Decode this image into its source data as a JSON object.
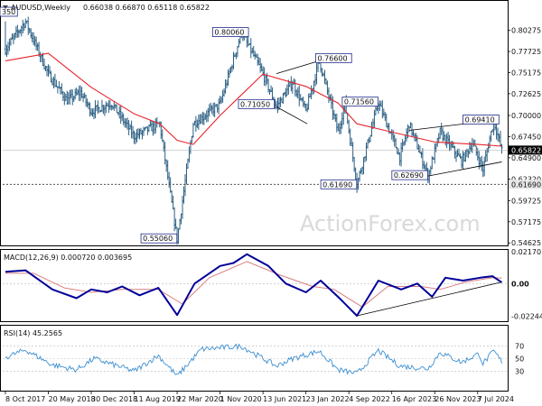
{
  "header": {
    "symbol": "AUDUSD,Weekly",
    "ohlc": "0.66038 0.66870 0.65118 0.65822"
  },
  "watermark": "ActionForex.com",
  "colors": {
    "background": "#ffffff",
    "bar": "#2b5f83",
    "moving_average": "#e8232b",
    "macd": "#000099",
    "signal": "#d98080",
    "rsi": "#3d8fd1",
    "annotation_border": "#1f2a8a",
    "current_price_tag": "#000000",
    "support_tag": "#e6e6e6"
  },
  "chart_data": [
    {
      "type": "line",
      "panel": "price",
      "description_type": "ohlc-bars-with-moving-average",
      "ylim": [
        0.5443,
        0.835
      ],
      "yticks": [
        "0.80275",
        "0.77725",
        "0.75175",
        "0.72625",
        "0.70000",
        "0.67450",
        "0.64900",
        "0.62320",
        "0.59725",
        "0.57175",
        "0.54625"
      ],
      "ytick_values": [
        0.80275,
        0.77725,
        0.75175,
        0.72625,
        0.7,
        0.6745,
        0.649,
        0.6232,
        0.59725,
        0.57175,
        0.54625
      ],
      "xlabels": [
        "8 Oct 2017",
        "20 May 2018",
        "30 Dec 2018",
        "11 Aug 2019",
        "22 Mar 2020",
        "1 Nov 2020",
        "13 Jun 2021",
        "23 Jan 2022",
        "4 Sep 2022",
        "16 Apr 2023",
        "26 Nov 2023",
        "7 Jul 2024"
      ],
      "price_path": [
        {
          "date": "2017-10-08",
          "value": 0.78
        },
        {
          "date": "2018-01-21",
          "value": 0.8135
        },
        {
          "date": "2018-05-20",
          "value": 0.75
        },
        {
          "date": "2018-08-26",
          "value": 0.718
        },
        {
          "date": "2018-11-04",
          "value": 0.728
        },
        {
          "date": "2018-12-30",
          "value": 0.705
        },
        {
          "date": "2019-04-14",
          "value": 0.715
        },
        {
          "date": "2019-08-11",
          "value": 0.675
        },
        {
          "date": "2019-12-22",
          "value": 0.69
        },
        {
          "date": "2020-03-22",
          "value": 0.5506
        },
        {
          "date": "2020-06-14",
          "value": 0.69
        },
        {
          "date": "2020-11-01",
          "value": 0.7135
        },
        {
          "date": "2021-02-21",
          "value": 0.8006
        },
        {
          "date": "2021-06-13",
          "value": 0.75
        },
        {
          "date": "2021-08-22",
          "value": 0.7105
        },
        {
          "date": "2021-11-14",
          "value": 0.74
        },
        {
          "date": "2022-01-23",
          "value": 0.705
        },
        {
          "date": "2022-04-03",
          "value": 0.766
        },
        {
          "date": "2022-07-10",
          "value": 0.68
        },
        {
          "date": "2022-08-14",
          "value": 0.715
        },
        {
          "date": "2022-10-16",
          "value": 0.6169
        },
        {
          "date": "2023-02-05",
          "value": 0.7156
        },
        {
          "date": "2023-05-28",
          "value": 0.65
        },
        {
          "date": "2023-07-16",
          "value": 0.69
        },
        {
          "date": "2023-10-22",
          "value": 0.6269
        },
        {
          "date": "2023-12-24",
          "value": 0.68
        },
        {
          "date": "2024-04-14",
          "value": 0.645
        },
        {
          "date": "2024-06-09",
          "value": 0.667
        },
        {
          "date": "2024-08-04",
          "value": 0.635
        },
        {
          "date": "2024-09-29",
          "value": 0.6941
        },
        {
          "date": "2024-11-10",
          "value": 0.6582
        }
      ],
      "moving_average": [
        {
          "date": "2017-10-08",
          "value": 0.766
        },
        {
          "date": "2018-05-20",
          "value": 0.775
        },
        {
          "date": "2018-12-30",
          "value": 0.734
        },
        {
          "date": "2019-08-11",
          "value": 0.702
        },
        {
          "date": "2019-12-22",
          "value": 0.69
        },
        {
          "date": "2020-03-22",
          "value": 0.67
        },
        {
          "date": "2020-06-14",
          "value": 0.665
        },
        {
          "date": "2020-11-01",
          "value": 0.7
        },
        {
          "date": "2021-06-13",
          "value": 0.75
        },
        {
          "date": "2022-01-23",
          "value": 0.735
        },
        {
          "date": "2022-07-10",
          "value": 0.715
        },
        {
          "date": "2022-10-16",
          "value": 0.69
        },
        {
          "date": "2023-04-16",
          "value": 0.68
        },
        {
          "date": "2023-11-26",
          "value": 0.668
        },
        {
          "date": "2024-07-07",
          "value": 0.665
        },
        {
          "date": "2024-11-10",
          "value": 0.663
        }
      ],
      "annotations": [
        {
          "label": "0.80060",
          "date": "2021-02-21",
          "value": 0.8006
        },
        {
          "label": "0.71050",
          "date": "2021-08-22",
          "value": 0.7105
        },
        {
          "label": "0.76600",
          "date": "2022-04-03",
          "value": 0.766
        },
        {
          "label": "0.71560",
          "date": "2023-02-05",
          "value": 0.7156
        },
        {
          "label": "0.61690",
          "date": "2022-10-16",
          "value": 0.6169
        },
        {
          "label": "0.62690",
          "date": "2023-10-22",
          "value": 0.6269
        },
        {
          "label": "0.69410",
          "date": "2024-09-29",
          "value": 0.6941
        },
        {
          "label": "0.55060",
          "date": "2020-03-22",
          "value": 0.5506
        },
        {
          "label": "350",
          "date": "2017-10-08",
          "value": 0.8135
        }
      ],
      "trendlines": [
        {
          "from": {
            "date": "2021-08-22",
            "value": 0.7105
          },
          "to": {
            "date": "2022-01-30",
            "value": 0.69
          }
        },
        {
          "from": {
            "date": "2021-08-22",
            "value": 0.7505
          },
          "to": {
            "date": "2022-04-03",
            "value": 0.766
          }
        },
        {
          "from": {
            "date": "2023-10-22",
            "value": 0.6269
          },
          "to": {
            "date": "2024-11-10",
            "value": 0.644
          }
        },
        {
          "from": {
            "date": "2023-07-16",
            "value": 0.682
          },
          "to": {
            "date": "2024-09-29",
            "value": 0.6941
          }
        }
      ],
      "horizontal_line": {
        "value": 0.6169,
        "label": "0.61690",
        "style": "dashed"
      },
      "current_price": {
        "value": 0.6582,
        "label": "0.65822"
      }
    },
    {
      "type": "line",
      "panel": "macd",
      "title": "MACD(12,26,9) 0.000720 0.003695",
      "ylim": [
        -0.02445,
        0.021701
      ],
      "yticks": [
        "0.021701",
        "0.00",
        "-0.022445"
      ],
      "ytick_values": [
        0.021701,
        0.0,
        -0.022445
      ],
      "series": [
        {
          "name": "MACD",
          "points": [
            {
              "date": "2017-10-08",
              "value": 0.008
            },
            {
              "date": "2018-01-21",
              "value": 0.009
            },
            {
              "date": "2018-06-10",
              "value": -0.004
            },
            {
              "date": "2018-10-14",
              "value": -0.01
            },
            {
              "date": "2018-12-30",
              "value": -0.004
            },
            {
              "date": "2019-03-24",
              "value": -0.006
            },
            {
              "date": "2019-06-09",
              "value": -0.002
            },
            {
              "date": "2019-09-08",
              "value": -0.008
            },
            {
              "date": "2019-12-15",
              "value": -0.003
            },
            {
              "date": "2020-03-22",
              "value": -0.0215
            },
            {
              "date": "2020-06-21",
              "value": 0.0
            },
            {
              "date": "2020-11-01",
              "value": 0.012
            },
            {
              "date": "2021-01-10",
              "value": 0.014
            },
            {
              "date": "2021-03-21",
              "value": 0.02
            },
            {
              "date": "2021-07-11",
              "value": 0.012
            },
            {
              "date": "2021-10-10",
              "value": 0.0
            },
            {
              "date": "2022-01-23",
              "value": -0.006
            },
            {
              "date": "2022-04-10",
              "value": 0.002
            },
            {
              "date": "2022-07-17",
              "value": -0.01
            },
            {
              "date": "2022-10-16",
              "value": -0.022
            },
            {
              "date": "2023-02-05",
              "value": 0.002
            },
            {
              "date": "2023-06-04",
              "value": -0.004
            },
            {
              "date": "2023-08-27",
              "value": 0.0
            },
            {
              "date": "2023-11-12",
              "value": -0.009
            },
            {
              "date": "2024-01-21",
              "value": 0.004
            },
            {
              "date": "2024-04-21",
              "value": 0.002
            },
            {
              "date": "2024-07-21",
              "value": 0.004
            },
            {
              "date": "2024-09-22",
              "value": 0.005
            },
            {
              "date": "2024-11-10",
              "value": 0.0007
            }
          ]
        },
        {
          "name": "Signal",
          "points": [
            {
              "date": "2017-10-08",
              "value": 0.007
            },
            {
              "date": "2018-03-04",
              "value": 0.007
            },
            {
              "date": "2018-08-12",
              "value": -0.003
            },
            {
              "date": "2018-12-30",
              "value": -0.006
            },
            {
              "date": "2019-06-09",
              "value": -0.004
            },
            {
              "date": "2019-12-15",
              "value": -0.004
            },
            {
              "date": "2020-04-19",
              "value": -0.014
            },
            {
              "date": "2020-09-06",
              "value": 0.004
            },
            {
              "date": "2021-03-21",
              "value": 0.015
            },
            {
              "date": "2021-09-05",
              "value": 0.006
            },
            {
              "date": "2022-02-27",
              "value": -0.002
            },
            {
              "date": "2022-06-19",
              "value": -0.004
            },
            {
              "date": "2022-11-13",
              "value": -0.016
            },
            {
              "date": "2023-03-26",
              "value": -0.002
            },
            {
              "date": "2023-09-17",
              "value": -0.002
            },
            {
              "date": "2023-12-24",
              "value": -0.004
            },
            {
              "date": "2024-05-05",
              "value": 0.001
            },
            {
              "date": "2024-09-22",
              "value": 0.004
            },
            {
              "date": "2024-11-10",
              "value": 0.0037
            }
          ]
        }
      ],
      "trendline": {
        "from": {
          "date": "2022-10-16",
          "value": -0.022
        },
        "to": {
          "date": "2024-11-10",
          "value": 0.001
        }
      }
    },
    {
      "type": "line",
      "panel": "rsi",
      "title": "RSI(14) 45.2565",
      "ylim": [
        0,
        100
      ],
      "yticks": [
        "70",
        "50",
        "30"
      ],
      "ytick_values": [
        70,
        50,
        30
      ],
      "levels": [
        70,
        50,
        30
      ],
      "series": [
        {
          "name": "RSI",
          "points": [
            {
              "date": "2017-10-08",
              "value": 52
            },
            {
              "date": "2018-01-21",
              "value": 64
            },
            {
              "date": "2018-06-10",
              "value": 40
            },
            {
              "date": "2018-10-14",
              "value": 32
            },
            {
              "date": "2019-01-13",
              "value": 50
            },
            {
              "date": "2019-05-19",
              "value": 38
            },
            {
              "date": "2019-08-11",
              "value": 30
            },
            {
              "date": "2019-12-15",
              "value": 55
            },
            {
              "date": "2020-03-22",
              "value": 22
            },
            {
              "date": "2020-07-26",
              "value": 65
            },
            {
              "date": "2021-02-21",
              "value": 70
            },
            {
              "date": "2021-08-22",
              "value": 38
            },
            {
              "date": "2021-11-14",
              "value": 50
            },
            {
              "date": "2022-04-03",
              "value": 62
            },
            {
              "date": "2022-07-10",
              "value": 32
            },
            {
              "date": "2022-10-16",
              "value": 26
            },
            {
              "date": "2023-02-05",
              "value": 63
            },
            {
              "date": "2023-05-28",
              "value": 38
            },
            {
              "date": "2023-10-22",
              "value": 34
            },
            {
              "date": "2023-12-24",
              "value": 60
            },
            {
              "date": "2024-04-14",
              "value": 44
            },
            {
              "date": "2024-07-14",
              "value": 58
            },
            {
              "date": "2024-08-04",
              "value": 42
            },
            {
              "date": "2024-09-29",
              "value": 62
            },
            {
              "date": "2024-11-10",
              "value": 45.26
            }
          ]
        }
      ]
    }
  ]
}
